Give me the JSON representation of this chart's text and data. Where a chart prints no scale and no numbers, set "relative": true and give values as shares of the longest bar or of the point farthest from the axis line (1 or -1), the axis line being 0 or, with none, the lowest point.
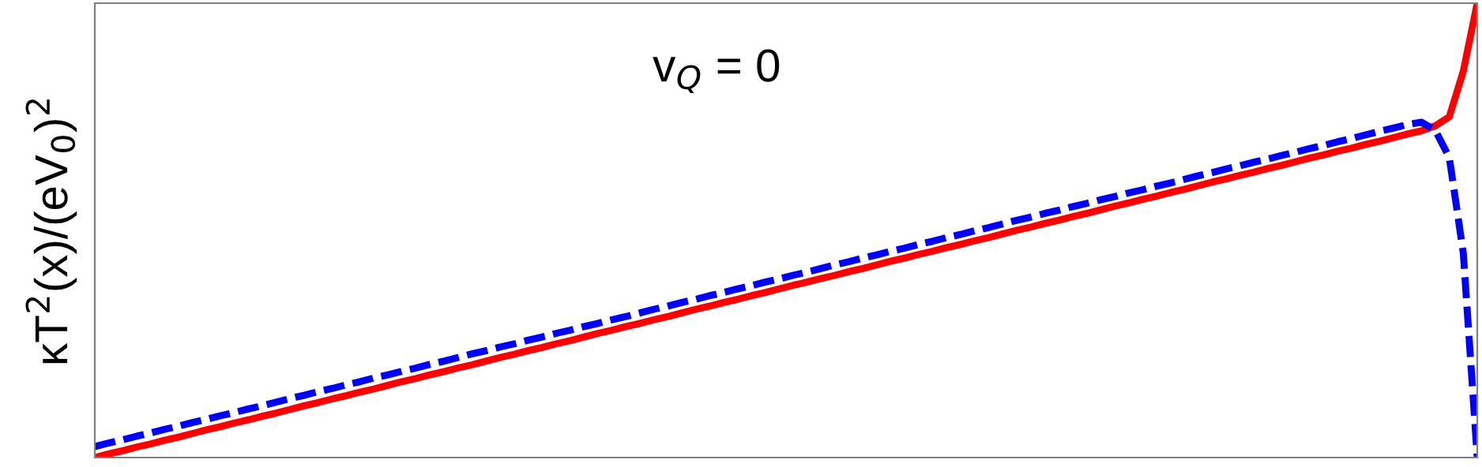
{
  "chart_data": {
    "type": "line",
    "relative": true,
    "ylabel": "κT$^{2}$(x)/(eV$_{0}$)$^{2}$",
    "annotations": [
      "v$_{Q}$ = 0"
    ],
    "categories": [
      null,
      null,
      null,
      null,
      null,
      null,
      null,
      null,
      null,
      null,
      null,
      null,
      null,
      null,
      null,
      null,
      null,
      null,
      null,
      null,
      null,
      null,
      null,
      null,
      null,
      null,
      null,
      null,
      null,
      null,
      null,
      null,
      null,
      null,
      null,
      null,
      null,
      null,
      null,
      null,
      null,
      null,
      null,
      null,
      null,
      null,
      null,
      null,
      null,
      null,
      null,
      null,
      null,
      null,
      null,
      null,
      null,
      null,
      null,
      null,
      null,
      null,
      null,
      null,
      null,
      null,
      null,
      null,
      null,
      null,
      null,
      null,
      null,
      null,
      null,
      null,
      null,
      null,
      null,
      null,
      null,
      null,
      null,
      null,
      null,
      null,
      null,
      null,
      null,
      null,
      null,
      null,
      null,
      null,
      null,
      null,
      null,
      null,
      null,
      null
    ],
    "series": [
      {
        "color": "#ff0000",
        "line_style": "solid",
        "values": [
          0,
          0.008,
          0.015,
          0.023,
          0.03,
          0.038,
          0.045,
          0.053,
          0.061,
          0.068,
          0.076,
          0.083,
          0.091,
          0.098,
          0.106,
          0.114,
          0.121,
          0.129,
          0.136,
          0.144,
          0.151,
          0.159,
          0.167,
          0.174,
          0.182,
          0.189,
          0.197,
          0.204,
          0.212,
          0.22,
          0.227,
          0.235,
          0.242,
          0.25,
          0.257,
          0.265,
          0.273,
          0.28,
          0.288,
          0.295,
          0.303,
          0.31,
          0.318,
          0.326,
          0.333,
          0.341,
          0.348,
          0.356,
          0.363,
          0.371,
          0.379,
          0.386,
          0.394,
          0.401,
          0.409,
          0.416,
          0.424,
          0.432,
          0.439,
          0.447,
          0.454,
          0.462,
          0.469,
          0.477,
          0.484,
          0.492,
          0.5,
          0.507,
          0.515,
          0.522,
          0.53,
          0.537,
          0.545,
          0.553,
          0.56,
          0.568,
          0.575,
          0.583,
          0.59,
          0.598,
          0.606,
          0.613,
          0.621,
          0.628,
          0.636,
          0.643,
          0.651,
          0.659,
          0.666,
          0.674,
          0.681,
          0.689,
          0.696,
          0.704,
          0.712,
          0.719,
          0.73,
          0.75,
          0.85,
          1.0
        ]
      },
      {
        "color": "#0000ff",
        "line_style": "dashed",
        "values": [
          0.024,
          0.032,
          0.039,
          0.047,
          0.054,
          0.062,
          0.069,
          0.077,
          0.084,
          0.092,
          0.099,
          0.107,
          0.114,
          0.122,
          0.13,
          0.137,
          0.145,
          0.152,
          0.16,
          0.167,
          0.175,
          0.182,
          0.19,
          0.197,
          0.205,
          0.212,
          0.22,
          0.228,
          0.235,
          0.243,
          0.25,
          0.258,
          0.265,
          0.273,
          0.28,
          0.288,
          0.295,
          0.303,
          0.31,
          0.318,
          0.326,
          0.333,
          0.341,
          0.348,
          0.356,
          0.363,
          0.371,
          0.378,
          0.386,
          0.393,
          0.401,
          0.408,
          0.416,
          0.424,
          0.431,
          0.439,
          0.446,
          0.454,
          0.461,
          0.469,
          0.476,
          0.484,
          0.491,
          0.499,
          0.506,
          0.514,
          0.522,
          0.529,
          0.537,
          0.544,
          0.552,
          0.559,
          0.567,
          0.574,
          0.582,
          0.589,
          0.597,
          0.604,
          0.612,
          0.62,
          0.627,
          0.635,
          0.642,
          0.65,
          0.657,
          0.665,
          0.672,
          0.68,
          0.687,
          0.695,
          0.702,
          0.71,
          0.718,
          0.725,
          0.733,
          0.738,
          0.72,
          0.66,
          0.45,
          0.0
        ]
      }
    ],
    "legend": false
  }
}
